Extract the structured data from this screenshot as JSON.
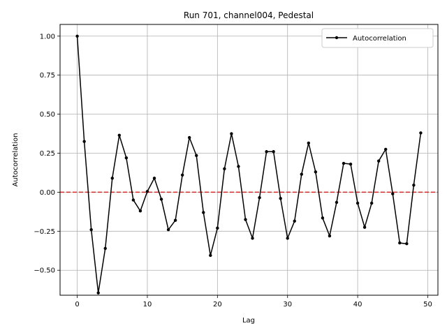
{
  "chart_data": {
    "type": "line",
    "title": "Run 701, channel004, Pedestal",
    "xlabel": "Lag",
    "ylabel": "Autocorrelation",
    "xlim": [
      -2.45,
      51.45
    ],
    "ylim": [
      -0.66,
      1.075
    ],
    "xticks": [
      0,
      10,
      20,
      30,
      40,
      50
    ],
    "yticks": [
      -0.5,
      -0.25,
      0.0,
      0.25,
      0.5,
      0.75,
      1.0
    ],
    "xtick_labels": [
      "0",
      "10",
      "20",
      "30",
      "40",
      "50"
    ],
    "ytick_labels": [
      "−0.50",
      "−0.25",
      "0.00",
      "0.25",
      "0.50",
      "0.75",
      "1.00"
    ],
    "grid": true,
    "legend_position": "top-right",
    "series": [
      {
        "name": "Autocorrelation",
        "color": "#000000",
        "marker": "dot",
        "x": [
          0,
          1,
          2,
          3,
          4,
          5,
          6,
          7,
          8,
          9,
          10,
          11,
          12,
          13,
          14,
          15,
          16,
          17,
          18,
          19,
          20,
          21,
          22,
          23,
          24,
          25,
          26,
          27,
          28,
          29,
          30,
          31,
          32,
          33,
          34,
          35,
          36,
          37,
          38,
          39,
          40,
          41,
          42,
          43,
          44,
          45,
          46,
          47,
          48,
          49
        ],
        "values": [
          1.0,
          0.325,
          -0.24,
          -0.645,
          -0.36,
          0.09,
          0.365,
          0.22,
          -0.05,
          -0.12,
          0.005,
          0.09,
          -0.045,
          -0.24,
          -0.18,
          0.11,
          0.35,
          0.235,
          -0.13,
          -0.405,
          -0.23,
          0.15,
          0.375,
          0.165,
          -0.175,
          -0.295,
          -0.035,
          0.26,
          0.26,
          -0.04,
          -0.295,
          -0.185,
          0.115,
          0.315,
          0.13,
          -0.165,
          -0.28,
          -0.065,
          0.185,
          0.18,
          -0.07,
          -0.225,
          -0.07,
          0.2,
          0.275,
          -0.01,
          -0.325,
          -0.33,
          0.045,
          0.38
        ]
      }
    ],
    "reference_line": {
      "y": 0.0,
      "style": "dashed",
      "color": "#d62728"
    }
  }
}
